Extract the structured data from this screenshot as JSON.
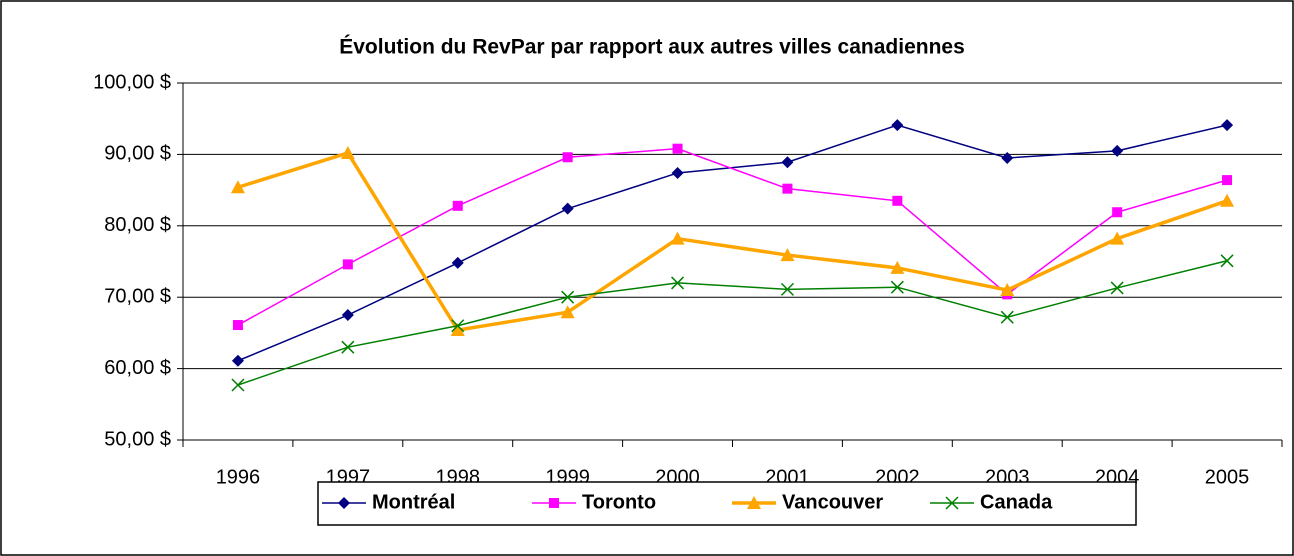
{
  "chart_data": {
    "type": "line",
    "title": "Évolution du RevPar par rapport aux autres villes canadiennes",
    "categories": [
      "1996",
      "1997",
      "1998",
      "1999",
      "2000",
      "2001",
      "2002",
      "2003",
      "2004",
      "2005"
    ],
    "series": [
      {
        "name": "Montréal",
        "color": "#000080",
        "marker": "diamond",
        "values": [
          61.1,
          67.5,
          74.8,
          82.4,
          87.4,
          88.9,
          94.1,
          89.5,
          90.5,
          94.1
        ]
      },
      {
        "name": "Toronto",
        "color": "#ff00ff",
        "marker": "square",
        "values": [
          66.1,
          74.6,
          82.8,
          89.6,
          90.8,
          85.2,
          83.5,
          70.4,
          81.9,
          86.4
        ]
      },
      {
        "name": "Vancouver",
        "color": "#ffa500",
        "marker": "triangle",
        "values": [
          85.4,
          90.2,
          65.4,
          67.9,
          78.2,
          75.9,
          74.1,
          71.0,
          78.2,
          83.5
        ]
      },
      {
        "name": "Canada",
        "color": "#008000",
        "marker": "x",
        "values": [
          57.7,
          63.0,
          66.0,
          70.0,
          72.0,
          71.1,
          71.4,
          67.2,
          71.3,
          75.1
        ]
      }
    ],
    "ylim": [
      50,
      100
    ],
    "yticks": [
      {
        "value": 50,
        "label": "50,00 $"
      },
      {
        "value": 60,
        "label": "60,00 $"
      },
      {
        "value": 70,
        "label": "70,00 $"
      },
      {
        "value": 80,
        "label": "80,00 $"
      },
      {
        "value": 90,
        "label": "90,00 $"
      },
      {
        "value": 100,
        "label": "100,00 $"
      }
    ],
    "grid": true,
    "legend": "bottom"
  }
}
